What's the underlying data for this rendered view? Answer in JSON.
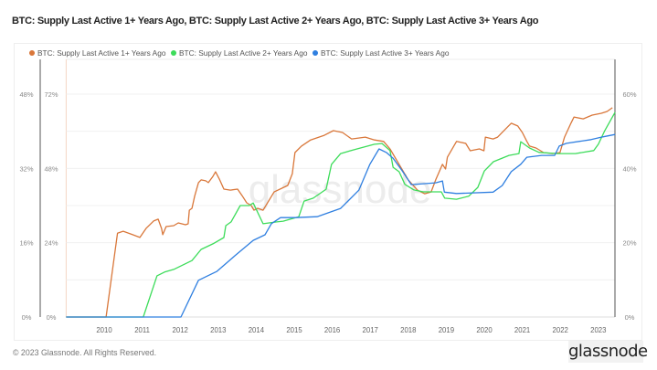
{
  "title": "BTC: Supply Last Active 1+ Years Ago, BTC: Supply Last Active 2+ Years Ago, BTC: Supply Last Active 3+ Years Ago",
  "footer": "© 2023 Glassnode. All Rights Reserved.",
  "logo_text": "glassnode",
  "watermark": "glassnode",
  "chart_data": {
    "type": "line",
    "title": "BTC: Supply Last Active 1+ Years Ago, BTC: Supply Last Active 2+ Years Ago, BTC: Supply Last Active 3+ Years Ago",
    "xlabel": "",
    "xlim": [
      2009.0,
      2023.45
    ],
    "x_ticks": [
      "2010",
      "2011",
      "2012",
      "2013",
      "2014",
      "2015",
      "2016",
      "2017",
      "2018",
      "2019",
      "2020",
      "2021",
      "2022",
      "2023"
    ],
    "grid": true,
    "legend": "top",
    "axes": [
      {
        "id": "left_outer",
        "side": "left",
        "ticks": [
          "0%",
          "16%",
          "32%",
          "48%"
        ],
        "ylim": [
          0,
          48
        ]
      },
      {
        "id": "left_inner",
        "side": "left",
        "ticks": [
          "0%",
          "24%",
          "48%",
          "72%"
        ],
        "ylim": [
          0,
          72
        ]
      },
      {
        "id": "right",
        "side": "right",
        "ticks": [
          "0%",
          "20%",
          "40%",
          "60%"
        ],
        "ylim": [
          0,
          60
        ]
      }
    ],
    "series": [
      {
        "name": "BTC: Supply Last Active 1+ Years Ago",
        "color": "#d9773a",
        "axis": "left_inner",
        "points": [
          [
            2009.0,
            0
          ],
          [
            2010.05,
            0
          ],
          [
            2010.35,
            27.1
          ],
          [
            2010.5,
            27.7
          ],
          [
            2010.75,
            26.6
          ],
          [
            2010.94,
            25.7
          ],
          [
            2011.1,
            28.6
          ],
          [
            2011.3,
            31.0
          ],
          [
            2011.42,
            31.6
          ],
          [
            2011.51,
            28.6
          ],
          [
            2011.54,
            26.6
          ],
          [
            2011.63,
            29.2
          ],
          [
            2011.83,
            29.5
          ],
          [
            2011.95,
            30.4
          ],
          [
            2012.14,
            29.8
          ],
          [
            2012.21,
            30.1
          ],
          [
            2012.24,
            34.5
          ],
          [
            2012.31,
            35.1
          ],
          [
            2012.38,
            39.0
          ],
          [
            2012.48,
            43.4
          ],
          [
            2012.55,
            44.3
          ],
          [
            2012.67,
            44.0
          ],
          [
            2012.74,
            43.4
          ],
          [
            2012.86,
            45.4
          ],
          [
            2012.93,
            46.9
          ],
          [
            2013.03,
            44.6
          ],
          [
            2013.15,
            41.3
          ],
          [
            2013.32,
            41.0
          ],
          [
            2013.51,
            41.3
          ],
          [
            2013.63,
            39.2
          ],
          [
            2013.75,
            36.9
          ],
          [
            2013.87,
            36.0
          ],
          [
            2013.94,
            34.5
          ],
          [
            2014.04,
            35.1
          ],
          [
            2014.18,
            34.5
          ],
          [
            2014.47,
            40.4
          ],
          [
            2014.83,
            42.5
          ],
          [
            2014.95,
            46.3
          ],
          [
            2015.02,
            53.1
          ],
          [
            2015.19,
            55.2
          ],
          [
            2015.43,
            57.2
          ],
          [
            2015.79,
            58.7
          ],
          [
            2016.03,
            60.2
          ],
          [
            2016.27,
            59.6
          ],
          [
            2016.51,
            57.5
          ],
          [
            2016.87,
            58.1
          ],
          [
            2017.11,
            57.2
          ],
          [
            2017.35,
            56.7
          ],
          [
            2017.52,
            54.3
          ],
          [
            2017.76,
            49.3
          ],
          [
            2018.0,
            44.3
          ],
          [
            2018.24,
            41.0
          ],
          [
            2018.43,
            39.8
          ],
          [
            2018.6,
            40.4
          ],
          [
            2018.72,
            44.3
          ],
          [
            2018.9,
            49.3
          ],
          [
            2018.98,
            47.8
          ],
          [
            2019.03,
            51.6
          ],
          [
            2019.27,
            56.7
          ],
          [
            2019.51,
            56.1
          ],
          [
            2019.63,
            53.7
          ],
          [
            2019.87,
            54.3
          ],
          [
            2019.99,
            53.7
          ],
          [
            2020.03,
            58.1
          ],
          [
            2020.23,
            57.5
          ],
          [
            2020.35,
            58.1
          ],
          [
            2020.59,
            61.1
          ],
          [
            2020.71,
            62.6
          ],
          [
            2020.88,
            61.7
          ],
          [
            2021.0,
            59.6
          ],
          [
            2021.12,
            56.7
          ],
          [
            2021.19,
            55.2
          ],
          [
            2021.36,
            54.6
          ],
          [
            2021.56,
            53.1
          ],
          [
            2021.8,
            52.8
          ],
          [
            2021.99,
            53.1
          ],
          [
            2022.11,
            58.1
          ],
          [
            2022.28,
            62.6
          ],
          [
            2022.36,
            64.6
          ],
          [
            2022.6,
            64.0
          ],
          [
            2022.84,
            65.2
          ],
          [
            2023.08,
            65.8
          ],
          [
            2023.23,
            66.4
          ],
          [
            2023.37,
            67.6
          ]
        ]
      },
      {
        "name": "BTC: Supply Last Active 2+ Years Ago",
        "color": "#3ddc5a",
        "axis": "right",
        "points": [
          [
            2009.0,
            0
          ],
          [
            2011.03,
            0
          ],
          [
            2011.39,
            11.1
          ],
          [
            2011.59,
            12.1
          ],
          [
            2011.83,
            12.8
          ],
          [
            2012.07,
            14.0
          ],
          [
            2012.31,
            15.2
          ],
          [
            2012.55,
            18.2
          ],
          [
            2012.86,
            19.7
          ],
          [
            2013.15,
            21.4
          ],
          [
            2013.2,
            24.6
          ],
          [
            2013.34,
            25.6
          ],
          [
            2013.58,
            30.0
          ],
          [
            2013.82,
            30.0
          ],
          [
            2013.92,
            30.7
          ],
          [
            2014.18,
            25.1
          ],
          [
            2014.54,
            25.6
          ],
          [
            2014.71,
            25.8
          ],
          [
            2015.12,
            27.0
          ],
          [
            2015.26,
            31.2
          ],
          [
            2015.5,
            32.0
          ],
          [
            2015.84,
            34.4
          ],
          [
            2015.98,
            41.1
          ],
          [
            2016.22,
            44.0
          ],
          [
            2016.63,
            45.2
          ],
          [
            2017.11,
            46.5
          ],
          [
            2017.31,
            46.7
          ],
          [
            2017.52,
            44.8
          ],
          [
            2017.6,
            40.3
          ],
          [
            2017.76,
            39.1
          ],
          [
            2017.91,
            35.7
          ],
          [
            2018.15,
            34.2
          ],
          [
            2018.39,
            33.7
          ],
          [
            2018.87,
            33.7
          ],
          [
            2018.96,
            32.0
          ],
          [
            2019.27,
            31.7
          ],
          [
            2019.59,
            32.5
          ],
          [
            2019.83,
            34.9
          ],
          [
            2020.0,
            39.3
          ],
          [
            2020.24,
            41.8
          ],
          [
            2020.65,
            43.5
          ],
          [
            2020.91,
            44.0
          ],
          [
            2020.96,
            47.2
          ],
          [
            2021.19,
            45.5
          ],
          [
            2021.44,
            44.3
          ],
          [
            2021.92,
            44.0
          ],
          [
            2022.4,
            44.0
          ],
          [
            2022.88,
            44.8
          ],
          [
            2023.0,
            46.5
          ],
          [
            2023.17,
            50.2
          ],
          [
            2023.44,
            55.1
          ]
        ]
      },
      {
        "name": "BTC: Supply Last Active 3+ Years Ago",
        "color": "#2f7fe0",
        "axis": "left_outer",
        "points": [
          [
            2009.0,
            0
          ],
          [
            2012.02,
            0
          ],
          [
            2012.48,
            7.9
          ],
          [
            2012.96,
            9.8
          ],
          [
            2013.44,
            13.2
          ],
          [
            2013.92,
            16.5
          ],
          [
            2014.23,
            17.7
          ],
          [
            2014.4,
            20.1
          ],
          [
            2014.64,
            21.4
          ],
          [
            2015.02,
            21.4
          ],
          [
            2015.6,
            21.6
          ],
          [
            2016.22,
            23.4
          ],
          [
            2016.7,
            27.3
          ],
          [
            2016.99,
            32.9
          ],
          [
            2017.23,
            36.2
          ],
          [
            2017.43,
            35.4
          ],
          [
            2017.6,
            34.2
          ],
          [
            2017.84,
            31.5
          ],
          [
            2018.08,
            28.5
          ],
          [
            2018.72,
            28.9
          ],
          [
            2018.9,
            29.3
          ],
          [
            2018.95,
            26.9
          ],
          [
            2019.27,
            26.6
          ],
          [
            2020.23,
            26.9
          ],
          [
            2020.47,
            28.3
          ],
          [
            2020.71,
            31.3
          ],
          [
            2020.96,
            32.9
          ],
          [
            2021.12,
            34.4
          ],
          [
            2021.51,
            34.8
          ],
          [
            2021.85,
            34.8
          ],
          [
            2021.97,
            36.8
          ],
          [
            2022.16,
            37.4
          ],
          [
            2022.81,
            38.2
          ],
          [
            2023.12,
            38.8
          ],
          [
            2023.44,
            39.3
          ]
        ]
      }
    ]
  }
}
